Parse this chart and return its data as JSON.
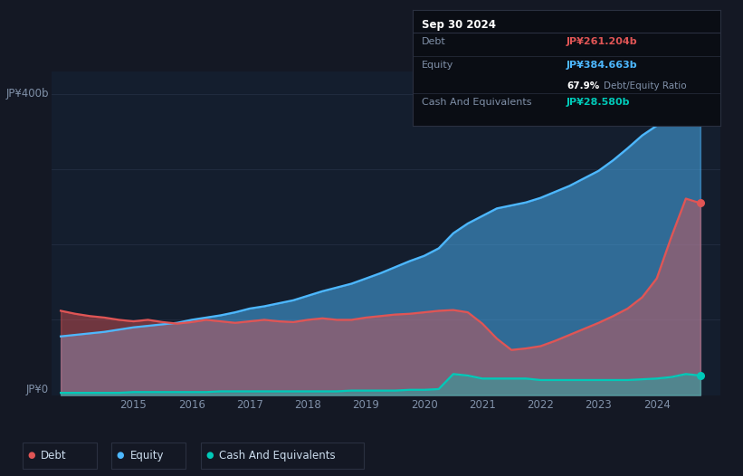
{
  "background_color": "#141824",
  "plot_bg_color": "#141e2e",
  "y_label_400": "JP¥400b",
  "y_label_0": "JP¥0",
  "ylim": [
    0,
    430
  ],
  "xlim": [
    2013.6,
    2025.1
  ],
  "debt_color": "#e05555",
  "equity_color": "#4db8ff",
  "cash_color": "#00c9b8",
  "grid_color": "#253044",
  "tooltip_bg": "#0a0d14",
  "tooltip_border": "#2a3040",
  "debt_label": "Debt",
  "equity_label": "Equity",
  "cash_label": "Cash And Equivalents",
  "tooltip_date": "Sep 30 2024",
  "tooltip_debt": "JP¥261.204b",
  "tooltip_equity": "JP¥384.663b",
  "tooltip_ratio": "67.9%",
  "tooltip_ratio_text": "Debt/Equity Ratio",
  "tooltip_cash": "JP¥28.580b",
  "years": [
    2013.75,
    2014.0,
    2014.25,
    2014.5,
    2014.75,
    2015.0,
    2015.25,
    2015.5,
    2015.75,
    2016.0,
    2016.25,
    2016.5,
    2016.75,
    2017.0,
    2017.25,
    2017.5,
    2017.75,
    2018.0,
    2018.25,
    2018.5,
    2018.75,
    2019.0,
    2019.25,
    2019.5,
    2019.75,
    2020.0,
    2020.25,
    2020.5,
    2020.75,
    2021.0,
    2021.25,
    2021.5,
    2021.75,
    2022.0,
    2022.25,
    2022.5,
    2022.75,
    2023.0,
    2023.25,
    2023.5,
    2023.75,
    2024.0,
    2024.25,
    2024.5,
    2024.75
  ],
  "equity": [
    78,
    80,
    82,
    84,
    87,
    90,
    92,
    94,
    96,
    100,
    103,
    106,
    110,
    115,
    118,
    122,
    126,
    132,
    138,
    143,
    148,
    155,
    162,
    170,
    178,
    185,
    195,
    215,
    228,
    238,
    248,
    252,
    256,
    262,
    270,
    278,
    288,
    298,
    312,
    328,
    345,
    358,
    370,
    384,
    390
  ],
  "debt": [
    112,
    108,
    105,
    103,
    100,
    98,
    100,
    97,
    95,
    97,
    100,
    98,
    96,
    98,
    100,
    98,
    97,
    100,
    102,
    100,
    100,
    103,
    105,
    107,
    108,
    110,
    112,
    113,
    110,
    95,
    75,
    60,
    62,
    65,
    72,
    80,
    88,
    96,
    105,
    115,
    130,
    155,
    210,
    261,
    255
  ],
  "cash": [
    3,
    3,
    3,
    3,
    3,
    4,
    4,
    4,
    4,
    4,
    4,
    5,
    5,
    5,
    5,
    5,
    5,
    5,
    5,
    5,
    6,
    6,
    6,
    6,
    7,
    7,
    8,
    28,
    26,
    22,
    22,
    22,
    22,
    20,
    20,
    20,
    20,
    20,
    20,
    20,
    21,
    22,
    24,
    28,
    26
  ]
}
